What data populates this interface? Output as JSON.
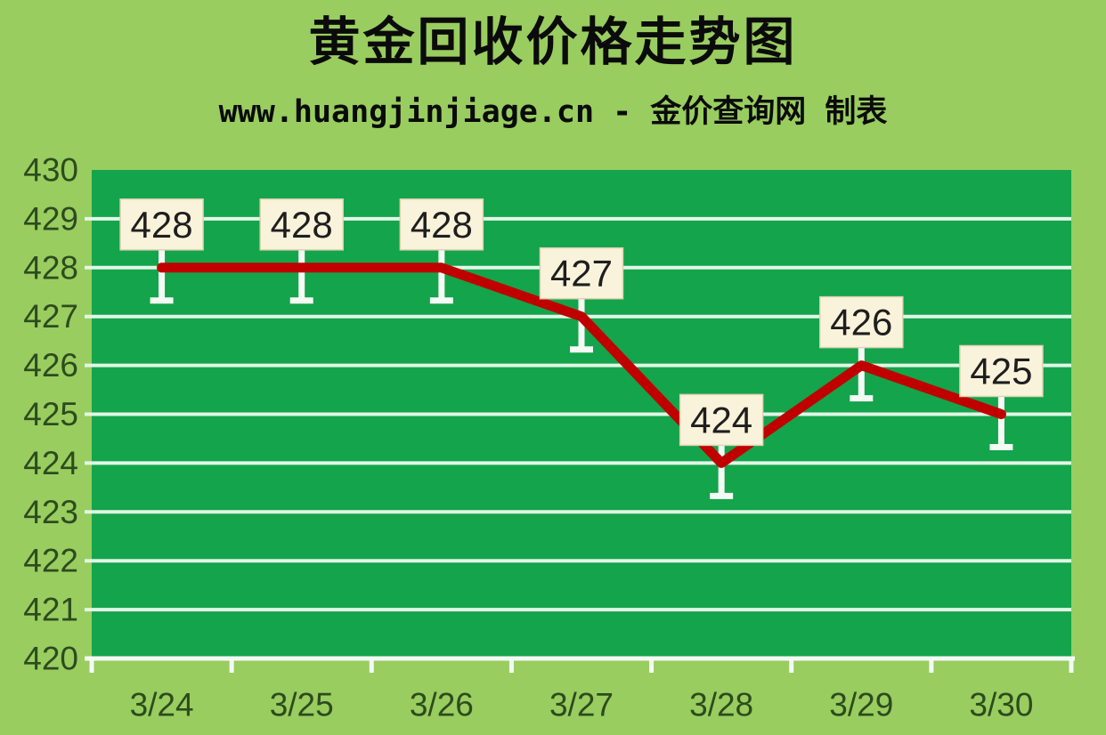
{
  "header": {
    "title": "黄金回收价格走势图",
    "subtitle": "www.huangjinjiage.cn - 金价查询网 制表"
  },
  "chart_data": {
    "type": "line",
    "title": "黄金回收价格走势图",
    "subtitle": "www.huangjinjiage.cn - 金价查询网 制表",
    "categories": [
      "3/24",
      "3/25",
      "3/26",
      "3/27",
      "3/28",
      "3/29",
      "3/30"
    ],
    "values": [
      428,
      428,
      428,
      427,
      424,
      426,
      425
    ],
    "data_labels": [
      "428",
      "428",
      "428",
      "427",
      "424",
      "426",
      "425"
    ],
    "yticks": [
      430,
      429,
      428,
      427,
      426,
      425,
      424,
      423,
      422,
      421,
      420
    ],
    "ylim": [
      420,
      430
    ],
    "xlabel": "",
    "ylabel": "",
    "grid": true,
    "legend": "none",
    "colors": {
      "page_bg": "#99CD5F",
      "plot_bg": "#14A44B",
      "gridline": "#E2F6E6",
      "axis_white": "#F4FBF5",
      "line": "#C00000",
      "label_box_bg": "#FAF3DB",
      "label_box_border": "#DED3B2",
      "label_text": "#1E1E1E",
      "axis_text": "#2D4B1E",
      "title_text": "#0B0B0B"
    }
  }
}
